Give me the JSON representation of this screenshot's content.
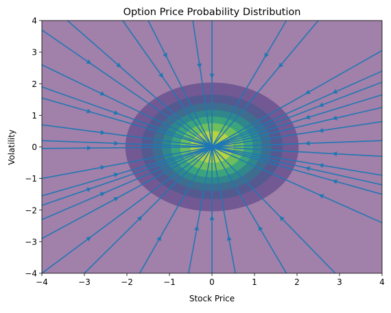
{
  "chart_data": {
    "type": "contour",
    "title": "Option Price Probability Distribution",
    "xlabel": "Stock Price",
    "ylabel": "Volatility",
    "xlim": [
      -4,
      4
    ],
    "ylim": [
      -4,
      4
    ],
    "x_ticks": [
      -4,
      -3,
      -2,
      -1,
      0,
      1,
      2,
      3,
      4
    ],
    "y_ticks": [
      -4,
      -3,
      -2,
      -1,
      0,
      1,
      2,
      3,
      4
    ],
    "x_tick_labels": [
      "−4",
      "−3",
      "−2",
      "−1",
      "0",
      "1",
      "2",
      "3",
      "4"
    ],
    "y_tick_labels": [
      "−4",
      "−3",
      "−2",
      "−1",
      "0",
      "1",
      "2",
      "3",
      "4"
    ],
    "grid": false,
    "contour_levels": [
      0.02,
      0.04,
      0.06,
      0.08,
      0.1,
      0.12,
      0.14,
      0.16
    ],
    "contour_colors": [
      "#440154",
      "#46327e",
      "#365c8d",
      "#277f8e",
      "#1fa187",
      "#4ac16d",
      "#a0da39",
      "#fde725"
    ],
    "colormap": "viridis",
    "fill_alpha": 0.5,
    "density_center": [
      0,
      0
    ],
    "density_sigma": [
      1,
      1
    ],
    "streamlines": {
      "color": "#1f77b4",
      "direction": "toward-origin",
      "seed_points": [
        [
          -4,
          3.7
        ],
        [
          -4,
          2.6
        ],
        [
          -4,
          1.9
        ],
        [
          -4,
          1.55
        ],
        [
          -4,
          0.7
        ],
        [
          -4,
          0.2
        ],
        [
          -4,
          -0.05
        ],
        [
          -4,
          -1.0
        ],
        [
          -4,
          -1.55
        ],
        [
          -4,
          -1.85
        ],
        [
          -4,
          -2.3
        ],
        [
          -4,
          -2.9
        ],
        [
          -4,
          -4.0
        ],
        [
          -3.4,
          4.0
        ],
        [
          -2.1,
          4.0
        ],
        [
          -1.5,
          4.0
        ],
        [
          -0.45,
          4.0
        ],
        [
          0.0,
          4.0
        ],
        [
          1.75,
          4.0
        ],
        [
          2.5,
          4.0
        ],
        [
          4,
          3.05
        ],
        [
          4,
          2.4
        ],
        [
          4,
          2.05
        ],
        [
          4,
          1.65
        ],
        [
          4,
          1.25
        ],
        [
          4,
          0.8
        ],
        [
          4,
          0.2
        ],
        [
          4,
          -0.3
        ],
        [
          4,
          -0.9
        ],
        [
          4,
          -1.2
        ],
        [
          4,
          -1.5
        ],
        [
          4,
          -2.4
        ],
        [
          -3.0,
          -4.0
        ],
        [
          -1.7,
          -4.0
        ],
        [
          -0.55,
          -4.0
        ],
        [
          0.0,
          -4.0
        ],
        [
          0.55,
          -4.0
        ],
        [
          1.75,
          -4.0
        ],
        [
          2.9,
          -4.0
        ]
      ]
    }
  }
}
